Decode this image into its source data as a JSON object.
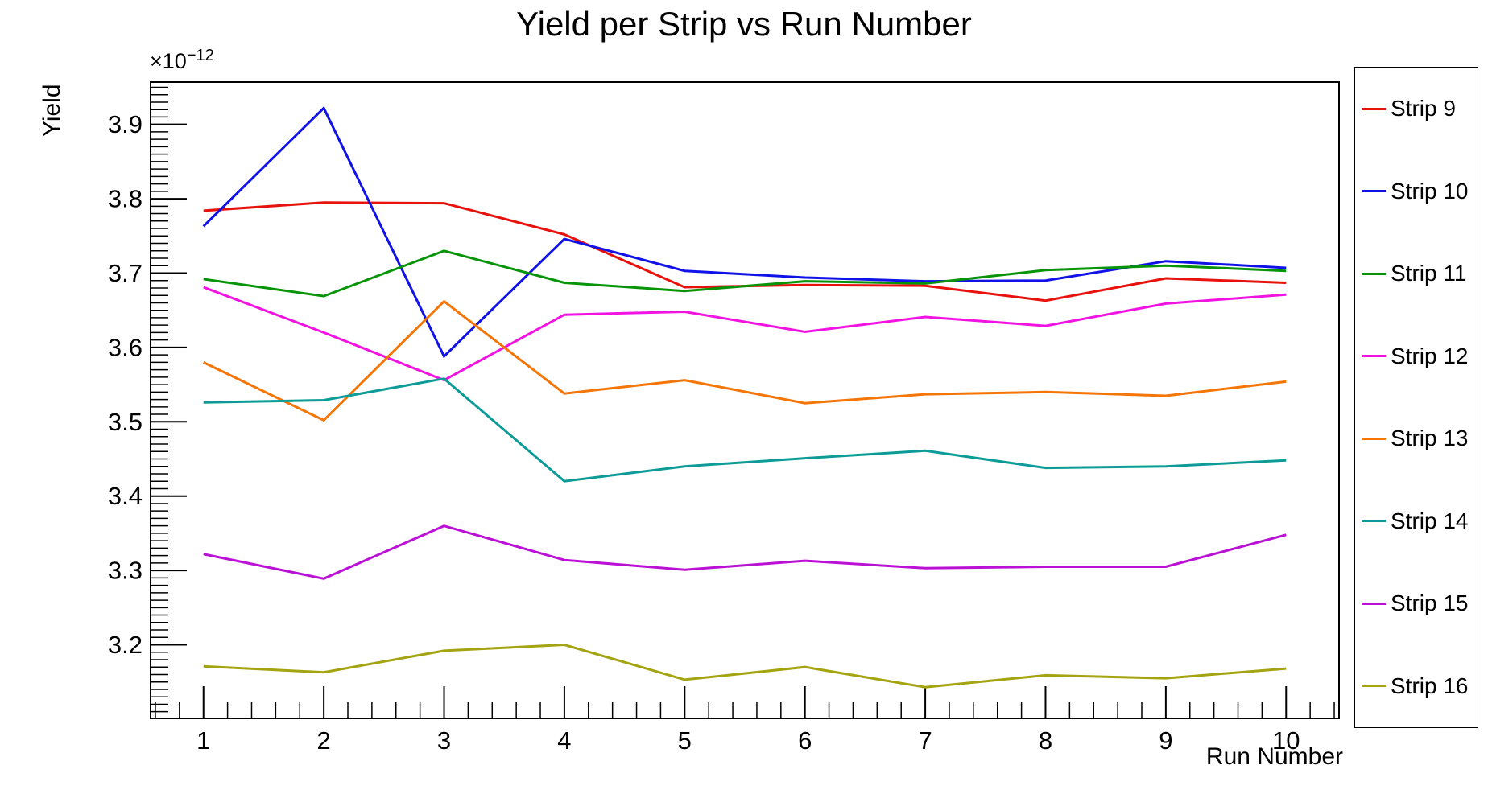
{
  "title": "Yield per Strip vs Run Number",
  "axes": {
    "y_title": "Yield",
    "x_title": "Run Number",
    "y_exponent_base": "×10",
    "y_exponent_power": "−12"
  },
  "chart_data": {
    "type": "line",
    "title": "Yield per Strip vs Run Number",
    "xlabel": "Run Number",
    "ylabel": "Yield",
    "y_scale_note": "values are ×10⁻¹²",
    "grid": false,
    "legend_position": "right",
    "xlim": [
      0.56,
      10.44
    ],
    "ylim": [
      3.101,
      3.957
    ],
    "x": [
      1,
      2,
      3,
      4,
      5,
      6,
      7,
      8,
      9,
      10
    ],
    "x_ticks": [
      {
        "v": 1,
        "label": "1"
      },
      {
        "v": 2,
        "label": "2"
      },
      {
        "v": 3,
        "label": "3"
      },
      {
        "v": 4,
        "label": "4"
      },
      {
        "v": 5,
        "label": "5"
      },
      {
        "v": 6,
        "label": "6"
      },
      {
        "v": 7,
        "label": "7"
      },
      {
        "v": 8,
        "label": "8"
      },
      {
        "v": 9,
        "label": "9"
      },
      {
        "v": 10,
        "label": "10"
      }
    ],
    "y_ticks": [
      {
        "v": 3.2,
        "label": "3.2"
      },
      {
        "v": 3.3,
        "label": "3.3"
      },
      {
        "v": 3.4,
        "label": "3.4"
      },
      {
        "v": 3.5,
        "label": "3.5"
      },
      {
        "v": 3.6,
        "label": "3.6"
      },
      {
        "v": 3.7,
        "label": "3.7"
      },
      {
        "v": 3.8,
        "label": "3.8"
      },
      {
        "v": 3.9,
        "label": "3.9"
      }
    ],
    "x_minor_step": 0.2,
    "y_minor_step": 0.01,
    "series": [
      {
        "name": "Strip 9",
        "color": "#e8120d",
        "values": [
          3.784,
          3.795,
          3.794,
          3.752,
          3.681,
          3.684,
          3.683,
          3.663,
          3.693,
          3.687
        ]
      },
      {
        "name": "Strip 10",
        "color": "#1112e8",
        "values": [
          3.763,
          3.922,
          3.588,
          3.746,
          3.703,
          3.694,
          3.689,
          3.69,
          3.716,
          3.707
        ]
      },
      {
        "name": "Strip 11",
        "color": "#089408",
        "values": [
          3.692,
          3.669,
          3.73,
          3.687,
          3.676,
          3.689,
          3.686,
          3.704,
          3.71,
          3.703
        ]
      },
      {
        "name": "Strip 12",
        "color": "#f213e2",
        "values": [
          3.681,
          3.62,
          3.556,
          3.644,
          3.648,
          3.621,
          3.641,
          3.629,
          3.659,
          3.671
        ]
      },
      {
        "name": "Strip 13",
        "color": "#f57507",
        "values": [
          3.58,
          3.502,
          3.662,
          3.538,
          3.556,
          3.525,
          3.537,
          3.54,
          3.535,
          3.554
        ]
      },
      {
        "name": "Strip 14",
        "color": "#0d9b98",
        "values": [
          3.526,
          3.529,
          3.558,
          3.42,
          3.44,
          3.451,
          3.461,
          3.438,
          3.44,
          3.448
        ]
      },
      {
        "name": "Strip 15",
        "color": "#bb10d6",
        "values": [
          3.322,
          3.289,
          3.36,
          3.314,
          3.301,
          3.313,
          3.303,
          3.305,
          3.305,
          3.348
        ]
      },
      {
        "name": "Strip 16",
        "color": "#a3a410",
        "values": [
          3.171,
          3.163,
          3.192,
          3.2,
          3.153,
          3.17,
          3.143,
          3.159,
          3.155,
          3.168
        ]
      }
    ]
  },
  "colors": {
    "background": "#ffffff",
    "axis": "#000000",
    "text": "#000000"
  }
}
